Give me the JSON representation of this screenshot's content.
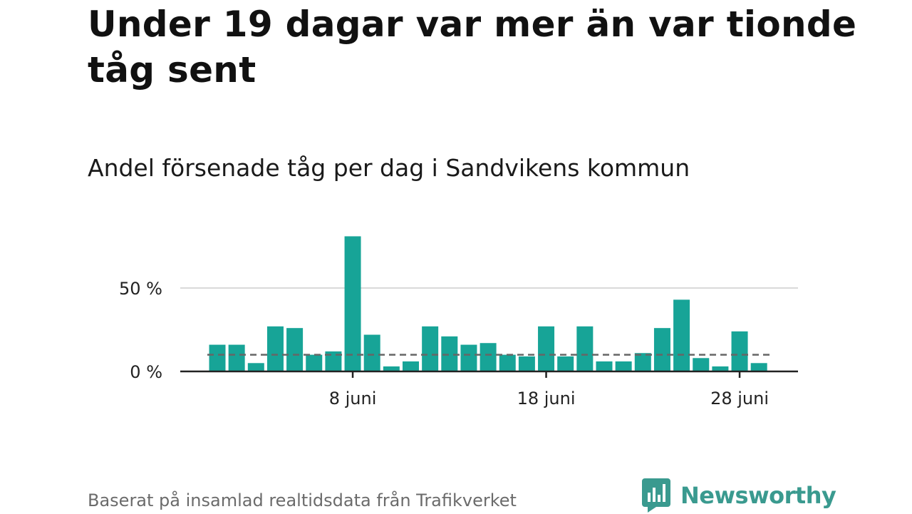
{
  "title": "Under 19 dagar var mer än var tionde tåg sent",
  "subtitle": "Andel försenade tåg per dag i Sandvikens kommun",
  "source": "Baserat på insamlad realtidsdata från Trafikverket",
  "brand": {
    "name": "Newsworthy",
    "color": "#3a9a8f",
    "icon": "newsworthy-logo-icon"
  },
  "colors": {
    "bar": "#17a497",
    "grid": "#d9d9d9",
    "reference_line": "#666666",
    "axis": "#222222"
  },
  "chart_data": {
    "type": "bar",
    "title": "",
    "xlabel": "",
    "ylabel": "",
    "x_ticks": [
      {
        "day": 8,
        "label": "8 juni"
      },
      {
        "day": 18,
        "label": "18 juni"
      },
      {
        "day": 28,
        "label": "28 juni"
      }
    ],
    "y_ticks": [
      {
        "value": 0,
        "label": "0 %"
      },
      {
        "value": 50,
        "label": "50 %"
      }
    ],
    "ylim": [
      0,
      85
    ],
    "grid": "horizontal",
    "reference_line": {
      "value": 10
    },
    "series": [
      {
        "days": [
          1,
          2,
          3,
          4,
          5,
          6,
          7,
          8,
          9,
          10,
          11,
          12,
          13,
          14,
          15,
          16,
          17,
          18,
          19,
          20,
          21,
          22,
          23,
          24,
          25,
          26,
          27,
          28,
          29,
          30
        ],
        "values": [
          16,
          16,
          5,
          27,
          26,
          10,
          12,
          81,
          22,
          3,
          6,
          27,
          21,
          16,
          17,
          10,
          9,
          27,
          9,
          27,
          6,
          6,
          11,
          26,
          43,
          8,
          3,
          24,
          5,
          null
        ]
      }
    ]
  }
}
